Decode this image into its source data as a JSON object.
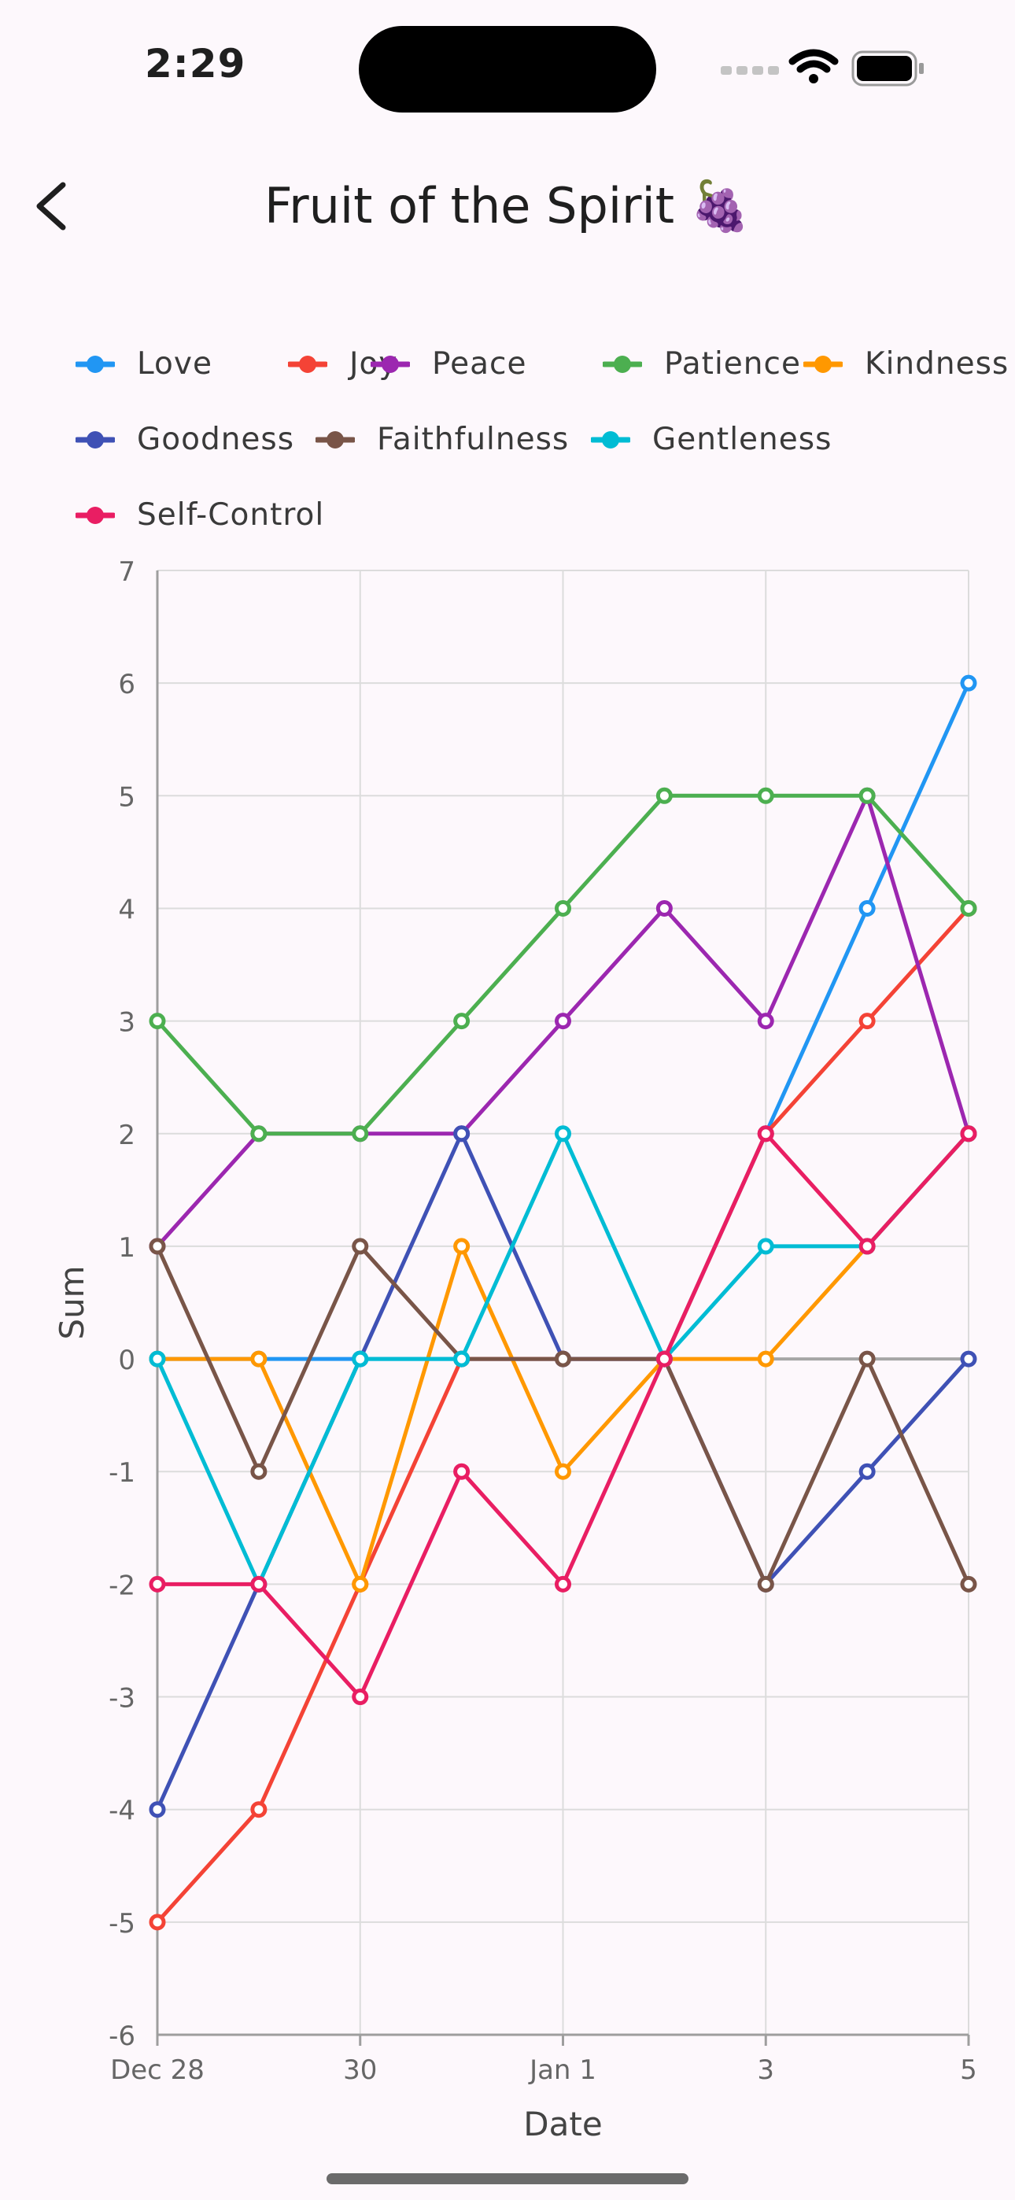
{
  "status": {
    "time": "2:29"
  },
  "header": {
    "title": "Fruit of the Spirit 🍇"
  },
  "chart_data": {
    "type": "line",
    "title": "Fruit of the Spirit",
    "xlabel": "Date",
    "ylabel": "Sum",
    "x_tick_labels": [
      "Dec 28",
      "",
      "30",
      "",
      "Jan 1",
      "",
      "3",
      "",
      "5"
    ],
    "ylim": [
      -6,
      7
    ],
    "yticks": [
      7,
      6,
      5,
      4,
      3,
      2,
      1,
      0,
      -1,
      -2,
      -3,
      -4,
      -5,
      -6
    ],
    "grid": true,
    "legend_position": "top",
    "series": [
      {
        "name": "Love",
        "color": "#2196f3",
        "values": [
          0,
          0,
          0,
          0,
          0,
          0,
          2,
          4,
          6
        ]
      },
      {
        "name": "Joy",
        "color": "#f44336",
        "values": [
          -5,
          -4,
          -2,
          0,
          0,
          0,
          2,
          3,
          4
        ]
      },
      {
        "name": "Peace",
        "color": "#9c27b0",
        "values": [
          1,
          2,
          2,
          2,
          3,
          4,
          3,
          5,
          2
        ]
      },
      {
        "name": "Patience",
        "color": "#4caf50",
        "values": [
          3,
          2,
          2,
          3,
          4,
          5,
          5,
          5,
          4
        ]
      },
      {
        "name": "Kindness",
        "color": "#ff9800",
        "values": [
          0,
          0,
          -2,
          1,
          -1,
          0,
          0,
          1,
          2
        ]
      },
      {
        "name": "Goodness",
        "color": "#3f51b5",
        "values": [
          -4,
          -2,
          0,
          2,
          0,
          0,
          -2,
          -1,
          0
        ]
      },
      {
        "name": "Faithfulness",
        "color": "#795548",
        "values": [
          1,
          -1,
          1,
          0,
          0,
          0,
          -2,
          0,
          -2
        ]
      },
      {
        "name": "Gentleness",
        "color": "#00bcd4",
        "values": [
          0,
          -2,
          0,
          0,
          2,
          0,
          1,
          1,
          2
        ]
      },
      {
        "name": "Self-Control",
        "color": "#e91e63",
        "values": [
          -2,
          -2,
          -3,
          -1,
          -2,
          0,
          2,
          1,
          2
        ]
      }
    ]
  }
}
